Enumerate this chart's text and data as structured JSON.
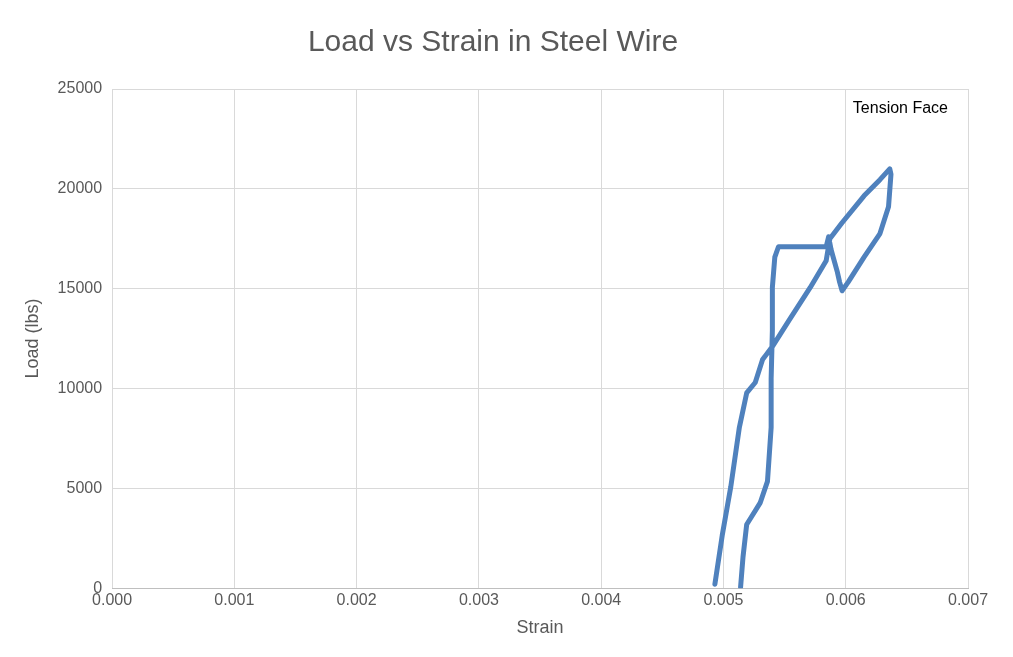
{
  "chart_data": {
    "type": "line",
    "title": "Load vs Strain in Steel Wire",
    "xlabel": "Strain",
    "ylabel": "Load (lbs)",
    "annotations": [
      "Tension Face"
    ],
    "xlim": [
      0,
      0.007
    ],
    "xticks": [
      {
        "value": 0,
        "label": "0.000"
      },
      {
        "value": 0.001,
        "label": "0.001"
      },
      {
        "value": 0.002,
        "label": "0.002"
      },
      {
        "value": 0.003,
        "label": "0.003"
      },
      {
        "value": 0.004,
        "label": "0.004"
      },
      {
        "value": 0.005,
        "label": "0.005"
      },
      {
        "value": 0.006,
        "label": "0.006"
      },
      {
        "value": 0.007,
        "label": "0.007"
      }
    ],
    "ylim": [
      0,
      25000
    ],
    "yticks": [
      0,
      5000,
      10000,
      15000,
      20000,
      25000
    ],
    "grid": true,
    "legend": false,
    "marker": "none",
    "line_style": "solid",
    "series": [
      {
        "color": "#4f81bd",
        "x": [
          0.00493,
          0.00499,
          0.00506,
          0.00513,
          0.00519,
          0.00526,
          0.00532,
          0.0054,
          0.00554,
          0.00571,
          0.00584,
          0.00587,
          0.00597,
          0.00615,
          0.00628,
          0.00636,
          0.00637,
          0.00635,
          0.00628,
          0.00615,
          0.00602,
          0.00597,
          0.00595,
          0.00593,
          0.00588,
          0.00586,
          0.00584,
          0.00562,
          0.00545,
          0.00542,
          0.0054,
          0.0054,
          0.00539,
          0.00539,
          0.00536,
          0.0053,
          0.00519,
          0.00516,
          0.00514
        ],
        "values": [
          200,
          2650,
          5080,
          8050,
          9780,
          10300,
          11450,
          12100,
          13450,
          15060,
          16400,
          17500,
          18300,
          19650,
          20460,
          21000,
          20730,
          19100,
          17760,
          16580,
          15330,
          14900,
          15330,
          15870,
          16960,
          17600,
          17100,
          17100,
          17100,
          16580,
          15060,
          12900,
          10480,
          8050,
          5350,
          4270,
          3190,
          1570,
          50
        ]
      }
    ]
  }
}
